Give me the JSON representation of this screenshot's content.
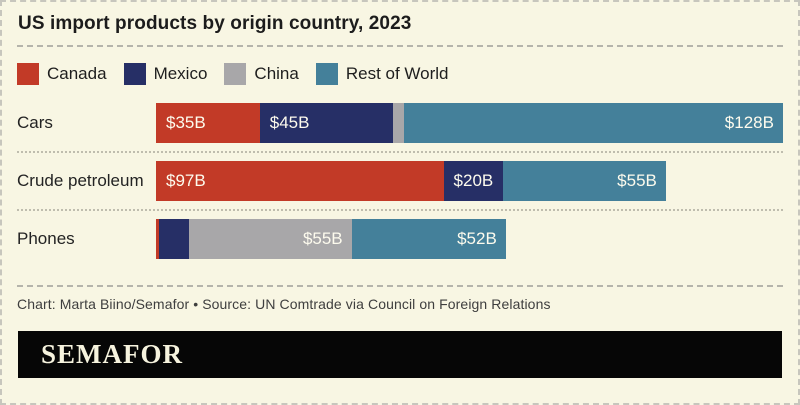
{
  "page": {
    "background_color": "#f8f6e3",
    "frame_border_color": "#c7c6bd"
  },
  "header": {
    "title": "US import products by origin country, 2023"
  },
  "legend": {
    "items": [
      {
        "label": "Canada",
        "color": "#c23a27"
      },
      {
        "label": "Mexico",
        "color": "#262f66"
      },
      {
        "label": "China",
        "color": "#a8a7a9"
      },
      {
        "label": "Rest of World",
        "color": "#44809a"
      }
    ]
  },
  "chart_data": {
    "type": "bar",
    "variant": "horizontal-stacked",
    "title": "US import products by origin country, 2023",
    "unit": "USD billions",
    "categories": [
      "Cars",
      "Crude petroleum",
      "Phones"
    ],
    "series": [
      {
        "name": "Canada",
        "color": "#c23a27",
        "values": [
          35,
          97,
          1
        ]
      },
      {
        "name": "Mexico",
        "color": "#262f66",
        "values": [
          45,
          20,
          10
        ]
      },
      {
        "name": "China",
        "color": "#a8a7a9",
        "values": [
          3.5,
          0,
          55
        ]
      },
      {
        "name": "Rest of World",
        "color": "#44809a",
        "values": [
          128,
          55,
          52
        ]
      }
    ],
    "data_labels": [
      [
        "$35B",
        "$45B",
        "",
        "$128B"
      ],
      [
        "$97B",
        "$20B",
        "",
        "$55B"
      ],
      [
        "",
        "",
        "$55B",
        "$52B"
      ]
    ],
    "label_alignments": [
      [
        "left",
        "left",
        "",
        "right"
      ],
      [
        "left",
        "left",
        "",
        "right"
      ],
      [
        "",
        "",
        "right",
        "right"
      ]
    ],
    "x_axis_shown": false,
    "grid": false,
    "legend_position": "top",
    "bar_text_color": "#fdfbee"
  },
  "footer": {
    "attribution": "Chart: Marta Biino/Semafor • Source: UN Comtrade via Council on Foreign Relations",
    "logo_text": "SEMAFOR"
  }
}
